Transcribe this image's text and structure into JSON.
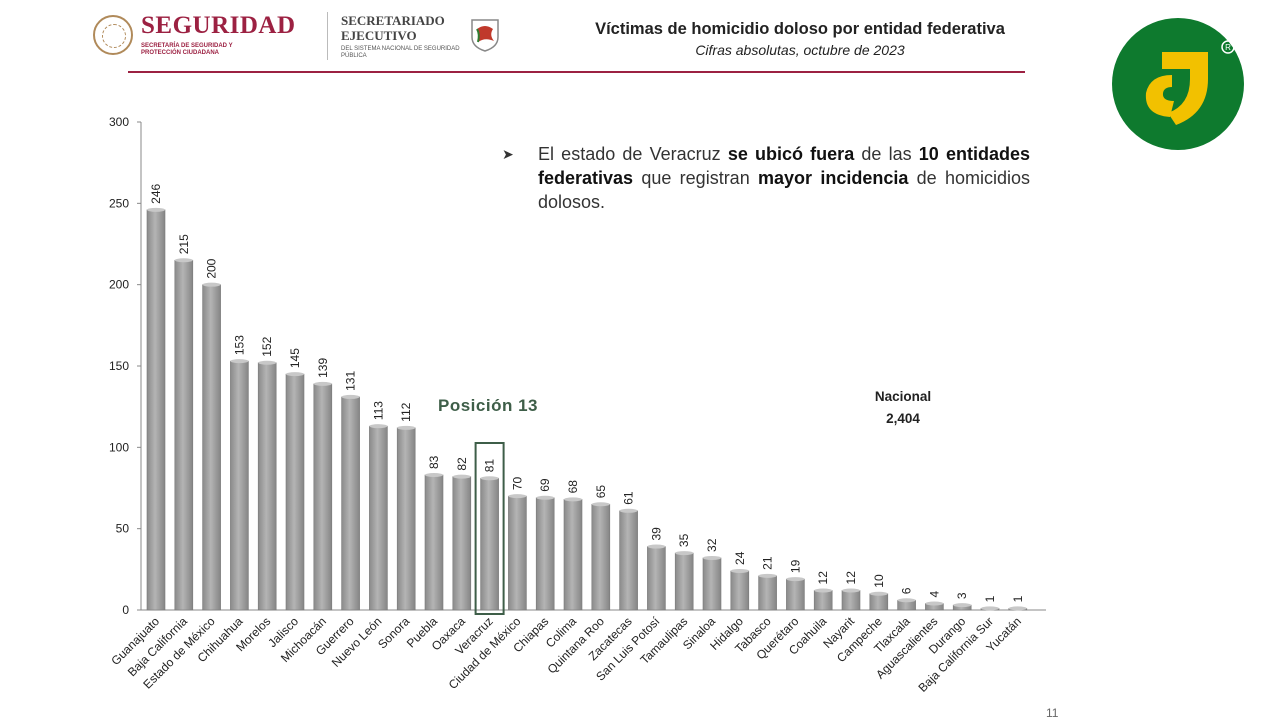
{
  "header": {
    "brand": "SEGURIDAD",
    "brand_sub": "SECRETARÍA DE SEGURIDAD Y PROTECCIÓN CIUDADANA",
    "sesnsp_line1": "SECRETARIADO",
    "sesnsp_line2": "EJECUTIVO",
    "sesnsp_sub": "DEL SISTEMA NACIONAL DE SEGURIDAD PÚBLICA"
  },
  "note": {
    "p1": "El estado de Veracruz ",
    "b1": "se ubicó fuera",
    "p2": " de las ",
    "b2": "10 entidades federativas",
    "p3": " que registran ",
    "b3": "mayor incidencia",
    "p4": " de homicidios dolosos."
  },
  "nacional": {
    "label": "Nacional",
    "value": "2,404"
  },
  "highlight": {
    "label": "Posición 13",
    "category": "Veracruz"
  },
  "page_number": "11",
  "colors": {
    "bar": "#9a9a9a",
    "bar_edge": "#7a7a7a",
    "highlight_box": "#3e5e48",
    "brand": "#9c2142"
  },
  "chart_data": {
    "type": "bar",
    "title": "Víctimas de homicidio doloso por entidad federativa",
    "subtitle": "Cifras absolutas, octubre de 2023",
    "xlabel": "",
    "ylabel": "",
    "ylim": [
      0,
      300
    ],
    "yticks": [
      0,
      50,
      100,
      150,
      200,
      250,
      300
    ],
    "grid": false,
    "categories": [
      "Guanajuato",
      "Baja California",
      "Estado de México",
      "Chihuahua",
      "Morelos",
      "Jalisco",
      "Michoacán",
      "Guerrero",
      "Nuevo León",
      "Sonora",
      "Puebla",
      "Oaxaca",
      "Veracruz",
      "Ciudad de México",
      "Chiapas",
      "Colima",
      "Quintana Roo",
      "Zacatecas",
      "San Luis Potosí",
      "Tamaulipas",
      "Sinaloa",
      "Hidalgo",
      "Tabasco",
      "Querétaro",
      "Coahuila",
      "Nayarit",
      "Campeche",
      "Tlaxcala",
      "Aguascalientes",
      "Durango",
      "Baja California Sur",
      "Yucatán"
    ],
    "values": [
      246,
      215,
      200,
      153,
      152,
      145,
      139,
      131,
      113,
      112,
      83,
      82,
      81,
      70,
      69,
      68,
      65,
      61,
      39,
      35,
      32,
      24,
      21,
      19,
      12,
      12,
      10,
      6,
      4,
      3,
      1,
      1
    ]
  }
}
